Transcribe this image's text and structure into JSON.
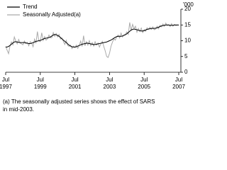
{
  "chart_data": {
    "type": "line",
    "ylabel": "'000",
    "x": [
      "1997-07",
      "1997-08",
      "1997-09",
      "1997-10",
      "1997-11",
      "1997-12",
      "1998-01",
      "1998-02",
      "1998-03",
      "1998-04",
      "1998-05",
      "1998-06",
      "1998-07",
      "1998-08",
      "1998-09",
      "1998-10",
      "1998-11",
      "1998-12",
      "1999-01",
      "1999-02",
      "1999-03",
      "1999-04",
      "1999-05",
      "1999-06",
      "1999-07",
      "1999-08",
      "1999-09",
      "1999-10",
      "1999-11",
      "1999-12",
      "2000-01",
      "2000-02",
      "2000-03",
      "2000-04",
      "2000-05",
      "2000-06",
      "2000-07",
      "2000-08",
      "2000-09",
      "2000-10",
      "2000-11",
      "2000-12",
      "2001-01",
      "2001-02",
      "2001-03",
      "2001-04",
      "2001-05",
      "2001-06",
      "2001-07",
      "2001-08",
      "2001-09",
      "2001-10",
      "2001-11",
      "2001-12",
      "2002-01",
      "2002-02",
      "2002-03",
      "2002-04",
      "2002-05",
      "2002-06",
      "2002-07",
      "2002-08",
      "2002-09",
      "2002-10",
      "2002-11",
      "2002-12",
      "2003-01",
      "2003-02",
      "2003-03",
      "2003-04",
      "2003-05",
      "2003-06",
      "2003-07",
      "2003-08",
      "2003-09",
      "2003-10",
      "2003-11",
      "2003-12",
      "2004-01",
      "2004-02",
      "2004-03",
      "2004-04",
      "2004-05",
      "2004-06",
      "2004-07",
      "2004-08",
      "2004-09",
      "2004-10",
      "2004-11",
      "2004-12",
      "2005-01",
      "2005-02",
      "2005-03",
      "2005-04",
      "2005-05",
      "2005-06",
      "2005-07",
      "2005-08",
      "2005-09",
      "2005-10",
      "2005-11",
      "2005-12",
      "2006-01",
      "2006-02",
      "2006-03",
      "2006-04",
      "2006-05",
      "2006-06",
      "2006-07",
      "2006-08",
      "2006-09",
      "2006-10",
      "2006-11",
      "2006-12",
      "2007-01",
      "2007-02",
      "2007-03",
      "2007-04",
      "2007-05",
      "2007-06",
      "2007-07"
    ],
    "series": [
      {
        "name": "Trend",
        "color": "#000000",
        "values": [
          8.0,
          8.0,
          8.2,
          8.5,
          8.9,
          9.3,
          9.6,
          9.7,
          9.6,
          9.5,
          9.4,
          9.4,
          9.4,
          9.4,
          9.3,
          9.2,
          9.1,
          9.1,
          9.2,
          9.4,
          9.6,
          9.8,
          9.9,
          10.0,
          10.1,
          10.3,
          10.5,
          10.7,
          10.8,
          10.9,
          11.0,
          11.2,
          11.5,
          11.8,
          12.0,
          11.9,
          11.7,
          11.4,
          11.0,
          10.6,
          10.2,
          9.8,
          9.4,
          9.0,
          8.6,
          8.3,
          8.1,
          8.0,
          8.0,
          8.1,
          8.3,
          8.5,
          8.7,
          8.9,
          9.0,
          9.1,
          9.2,
          9.2,
          9.1,
          9.0,
          8.9,
          8.8,
          8.8,
          8.9,
          9.0,
          9.1,
          9.2,
          9.3,
          9.4,
          9.5,
          9.6,
          9.8,
          10.0,
          10.2,
          10.5,
          10.8,
          11.1,
          11.3,
          11.4,
          11.4,
          11.4,
          11.5,
          11.7,
          11.9,
          12.2,
          12.6,
          13.0,
          13.4,
          13.6,
          13.7,
          13.6,
          13.5,
          13.3,
          13.2,
          13.1,
          13.1,
          13.2,
          13.4,
          13.6,
          13.7,
          13.8,
          13.9,
          13.9,
          13.9,
          14.0,
          14.1,
          14.3,
          14.5,
          14.7,
          14.8,
          14.9,
          15.0,
          15.0,
          15.0,
          14.9,
          14.9,
          14.9,
          15.0,
          15.0,
          15.0,
          15.0
        ]
      },
      {
        "name": "Seasonally Adjusted(a)",
        "color": "#aaaaaa",
        "values": [
          8.2,
          7.0,
          5.9,
          8.4,
          9.6,
          8.7,
          11.2,
          9.9,
          9.0,
          10.4,
          9.3,
          9.0,
          8.7,
          9.9,
          9.1,
          9.5,
          8.4,
          9.7,
          9.3,
          8.1,
          10.5,
          9.2,
          12.9,
          10.0,
          9.7,
          12.5,
          10.1,
          11.3,
          10.2,
          10.6,
          11.8,
          10.9,
          11.0,
          12.6,
          11.4,
          12.3,
          11.2,
          12.0,
          10.5,
          10.9,
          9.8,
          8.8,
          10.1,
          8.5,
          8.2,
          8.6,
          7.5,
          8.3,
          7.8,
          8.6,
          7.6,
          8.5,
          9.9,
          8.2,
          11.6,
          8.4,
          9.7,
          8.6,
          10.0,
          8.4,
          9.4,
          8.3,
          9.7,
          8.6,
          9.3,
          8.0,
          9.0,
          9.8,
          8.2,
          6.8,
          5.0,
          4.7,
          6.0,
          8.2,
          9.5,
          10.6,
          10.2,
          11.3,
          11.8,
          10.9,
          12.4,
          11.2,
          11.9,
          12.0,
          12.8,
          12.0,
          15.8,
          13.2,
          15.2,
          13.9,
          14.6,
          12.7,
          13.9,
          12.9,
          14.0,
          12.6,
          13.5,
          13.0,
          14.1,
          13.6,
          14.3,
          13.6,
          14.4,
          13.5,
          13.7,
          14.6,
          13.8,
          14.9,
          14.4,
          15.3,
          14.6,
          15.6,
          14.8,
          15.1,
          14.5,
          15.4,
          14.6,
          15.2,
          14.8,
          15.0,
          14.9
        ]
      }
    ],
    "xlim": [
      "1997-07",
      "2007-07"
    ],
    "xticks": [
      {
        "value": "1997-07",
        "month": "Jul",
        "year": "1997"
      },
      {
        "value": "1999-07",
        "month": "Jul",
        "year": "1999"
      },
      {
        "value": "2001-07",
        "month": "Jul",
        "year": "2001"
      },
      {
        "value": "2003-07",
        "month": "Jul",
        "year": "2003"
      },
      {
        "value": "2005-07",
        "month": "Jul",
        "year": "2005"
      },
      {
        "value": "2007-07",
        "month": "Jul",
        "year": "2007"
      }
    ],
    "ylim": [
      0,
      20
    ],
    "yticks": [
      0,
      5,
      10,
      15,
      20
    ],
    "legend": "top-left",
    "footnote": [
      "(a) The seasonally adjusted series shows the effect of SARS",
      "in mid-2003."
    ]
  }
}
